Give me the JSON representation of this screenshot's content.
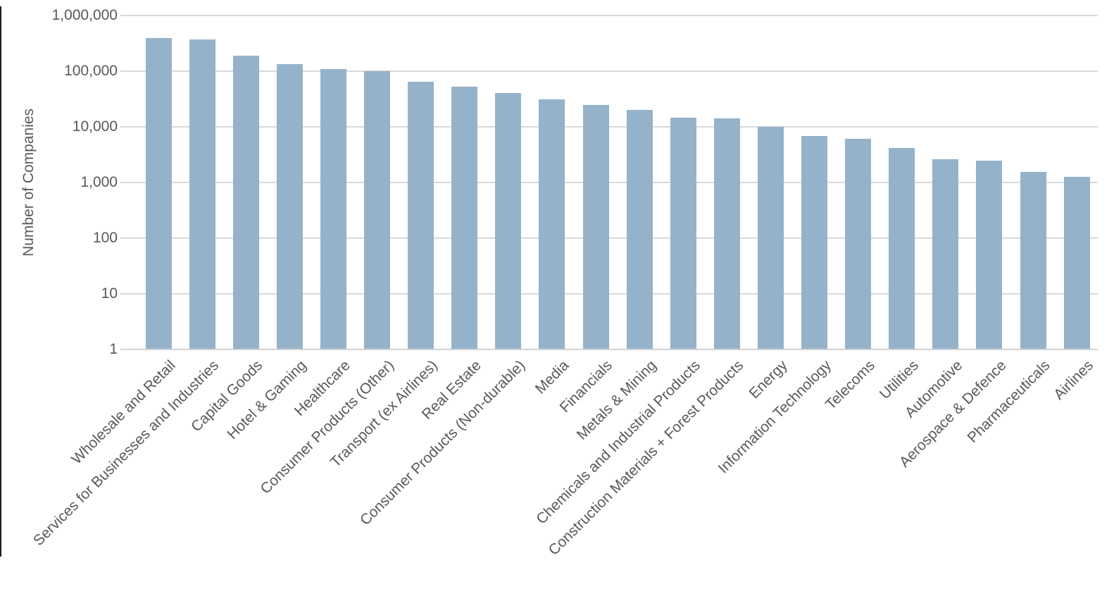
{
  "chart_data": {
    "type": "bar",
    "title": "",
    "xlabel": "",
    "ylabel": "Number of Companies",
    "yscale": "log",
    "ylim": [
      1,
      1000000
    ],
    "ytick_labels": [
      "1",
      "10",
      "100",
      "1,000",
      "10,000",
      "100,000",
      "1,000,000"
    ],
    "grid": "horizontal-major",
    "legend": "none",
    "categories": [
      "Wholesale and Retail",
      "Services for Businesses and Industries",
      "Capital Goods",
      "Hotel & Gaming",
      "Healthcare",
      "Consumer Products (Other)",
      "Transport (ex Airlines)",
      "Real Estate",
      "Consumer Products (Non-durable)",
      "Media",
      "Financials",
      "Metals & Mining",
      "Chemicals and Industrial Products",
      "Construction Materials + Forest Products",
      "Energy",
      "Information Technology",
      "Telecoms",
      "Utilities",
      "Automotive",
      "Aerospace & Defence",
      "Pharmaceuticals",
      "Airlines"
    ],
    "values": [
      390000,
      370000,
      190000,
      135000,
      110000,
      100000,
      64000,
      52000,
      41000,
      31500,
      24500,
      20000,
      14800,
      14300,
      10000,
      6900,
      6100,
      4200,
      2600,
      2500,
      1550,
      1280
    ]
  },
  "colors": {
    "bar": "#95B2CB",
    "gridline": "#D9D9D9",
    "axis_line": "#D3D3D3",
    "axis_text": "#595959",
    "background": "#FFFFFF"
  }
}
